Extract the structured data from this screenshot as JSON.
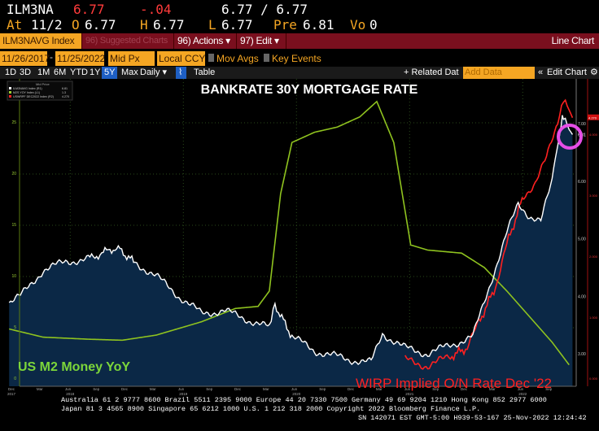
{
  "quote": {
    "ticker": "ILM3NA",
    "last": "6.77",
    "change": "-.04",
    "bid_ask": "6.77 / 6.77",
    "at_label": "At",
    "at_date": "11/2",
    "open_label": "O",
    "open": "6.77",
    "high_label": "H",
    "high": "6.77",
    "low_label": "L",
    "low": "6.77",
    "pre_label": "Pre",
    "pre": "6.81",
    "vol_label": "Vo",
    "vol": "0"
  },
  "toolbar": {
    "security": "ILM3NAVG Index",
    "suggested": "96) Suggested Charts",
    "actions": "96) Actions ▾",
    "edit": "97) Edit ▾",
    "chart_type": "Line Chart"
  },
  "settings": {
    "start_date": "11/26/2017",
    "end_date": "11/25/2022",
    "dash": "-",
    "price": "Mid Px",
    "currency": "Local CCY",
    "mov_avgs": "Mov Avgs",
    "key_events": "Key Events"
  },
  "periods": [
    "1D",
    "3D",
    "1M",
    "6M",
    "YTD",
    "1Y",
    "5Y",
    "Max"
  ],
  "frequency": "Daily ▾",
  "table": "Table",
  "related": "+ Related Dat",
  "add_data_placeholder": "Add Data",
  "edit_chart": "Edit Chart",
  "legend": {
    "title": "Mid Price",
    "items": [
      {
        "label": "ILM3NAVG Index (R1)",
        "value": "6.81",
        "color": "#ffffff"
      },
      {
        "label": "M2S YOY Index (L1)",
        "value": "1.3",
        "color": "#9acd32"
      },
      {
        "label": "USWRPF DEC2022 Index (R2)",
        "value": "4.270",
        "color": "#ff2020"
      }
    ]
  },
  "chart_data": {
    "type": "line",
    "title": "BANKRATE 30Y MORTGAGE RATE",
    "annotations": [
      "US M2 Money YoY",
      "WIRP Implied O/N Rate Dec '22"
    ],
    "x_ticks": [
      "Dec",
      "Mar",
      "Jun",
      "Sep",
      "Dec",
      "Mar",
      "Jun",
      "Sep",
      "Dec",
      "Mar",
      "Jun",
      "Sep",
      "Dec",
      "Mar",
      "Jun",
      "Sep",
      "Dec",
      "Mar",
      "Jun",
      "Sep"
    ],
    "x_years": [
      "2017",
      "2018",
      "2019",
      "2020",
      "2021",
      "2022"
    ],
    "left_axis": {
      "ticks": [
        "25",
        "20",
        "15",
        "10",
        "5",
        "0"
      ],
      "range": [
        0,
        27
      ]
    },
    "right1_axis": {
      "ticks": [
        "7.00",
        "6.00",
        "5.00",
        "4.00",
        "3.00"
      ],
      "last": "6.81"
    },
    "right2_axis": {
      "ticks": [
        "4.000",
        "3.000",
        "2.000",
        "1.000",
        "0.000"
      ],
      "last": "4.270"
    },
    "series": [
      {
        "name": "Bankrate 30Y Mortgage Rate",
        "axis": "R1",
        "color": "#ffffff",
        "points": [
          [
            2017.9,
            3.9
          ],
          [
            2018.0,
            4.0
          ],
          [
            2018.2,
            4.45
          ],
          [
            2018.4,
            4.6
          ],
          [
            2018.6,
            4.65
          ],
          [
            2018.85,
            4.85
          ],
          [
            2019.0,
            4.6
          ],
          [
            2019.2,
            4.35
          ],
          [
            2019.4,
            4.0
          ],
          [
            2019.6,
            3.7
          ],
          [
            2019.8,
            3.75
          ],
          [
            2020.0,
            3.6
          ],
          [
            2020.2,
            3.45
          ],
          [
            2020.25,
            3.85
          ],
          [
            2020.4,
            3.3
          ],
          [
            2020.6,
            3.05
          ],
          [
            2020.9,
            2.9
          ],
          [
            2021.1,
            2.85
          ],
          [
            2021.2,
            3.35
          ],
          [
            2021.4,
            3.1
          ],
          [
            2021.6,
            3.0
          ],
          [
            2021.8,
            3.15
          ],
          [
            2022.0,
            3.3
          ],
          [
            2022.1,
            3.9
          ],
          [
            2022.3,
            5.1
          ],
          [
            2022.4,
            5.6
          ],
          [
            2022.5,
            5.4
          ],
          [
            2022.6,
            5.3
          ],
          [
            2022.7,
            6.0
          ],
          [
            2022.78,
            7.0
          ],
          [
            2022.8,
            7.15
          ],
          [
            2022.85,
            6.9
          ],
          [
            2022.88,
            6.81
          ]
        ]
      },
      {
        "name": "US M2 Money YoY",
        "axis": "L1",
        "color": "#8fc31f",
        "points": [
          [
            2017.9,
            4.8
          ],
          [
            2018.2,
            4.0
          ],
          [
            2018.6,
            3.8
          ],
          [
            2018.9,
            3.7
          ],
          [
            2019.2,
            4.2
          ],
          [
            2019.6,
            5.5
          ],
          [
            2019.9,
            6.8
          ],
          [
            2020.1,
            7.0
          ],
          [
            2020.2,
            8.5
          ],
          [
            2020.3,
            18
          ],
          [
            2020.4,
            23
          ],
          [
            2020.6,
            24
          ],
          [
            2020.8,
            24.5
          ],
          [
            2021.0,
            25.5
          ],
          [
            2021.15,
            27
          ],
          [
            2021.3,
            23
          ],
          [
            2021.45,
            13
          ],
          [
            2021.6,
            12.5
          ],
          [
            2021.9,
            12.2
          ],
          [
            2022.1,
            10.8
          ],
          [
            2022.3,
            8.5
          ],
          [
            2022.5,
            6
          ],
          [
            2022.7,
            3.5
          ],
          [
            2022.85,
            1.3
          ]
        ]
      },
      {
        "name": "WIRP Implied O/N Rate Dec '22",
        "axis": "R2",
        "color": "#ff2020",
        "points": [
          [
            2021.4,
            0.3
          ],
          [
            2021.6,
            0.2
          ],
          [
            2021.8,
            0.35
          ],
          [
            2021.95,
            0.5
          ],
          [
            2022.05,
            0.9
          ],
          [
            2022.2,
            1.5
          ],
          [
            2022.3,
            2.2
          ],
          [
            2022.45,
            3.0
          ],
          [
            2022.55,
            3.2
          ],
          [
            2022.65,
            3.6
          ],
          [
            2022.75,
            4.2
          ],
          [
            2022.8,
            4.6
          ],
          [
            2022.85,
            4.4
          ],
          [
            2022.88,
            4.27
          ]
        ]
      }
    ]
  },
  "footer": {
    "line1": "Australia 61 2 9777 8600 Brazil 5511 2395 9000 Europe 44 20 7330 7500 Germany 49 69 9204 1210 Hong Kong 852 2977 6000",
    "line2": "Japan 81 3 4565 8900      Singapore 65 6212 1000      U.S. 1 212 318 2000        Copyright 2022 Bloomberg Finance L.P.",
    "line3": "SN 142071 EST  GMT-5:00 H939-53-167 25-Nov-2022 12:24:42"
  }
}
